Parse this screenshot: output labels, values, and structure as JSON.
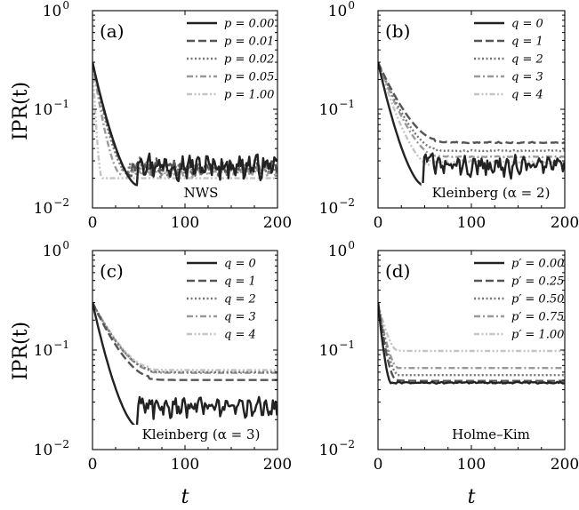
{
  "axes": {
    "ylabel": "IPR(t)",
    "xlabel": "t",
    "x_ticks": [
      "0",
      "100",
      "200"
    ],
    "y_ticks": [
      {
        "base": "10",
        "exp": "0"
      },
      {
        "base": "10",
        "exp": "−1"
      },
      {
        "base": "10",
        "exp": "−2"
      }
    ]
  },
  "chart_data": [
    {
      "id": "a",
      "type": "line",
      "label": "(a)",
      "annotation": "NWS",
      "xlim": [
        0,
        200
      ],
      "ylim": [
        0.01,
        1
      ],
      "yscale": "log",
      "legend_position": "top-right",
      "series": [
        {
          "name": "p = 0.00",
          "color": "#222222",
          "dash": "solid",
          "profile": {
            "start": 0.3,
            "decay_to": 0.017,
            "decay_end": 48,
            "jump": 0.034,
            "tail": 0.027,
            "noise": 0.2
          }
        },
        {
          "name": "p = 0.01",
          "color": "#555555",
          "dash": "long-dash",
          "profile": {
            "start": 0.3,
            "decay_to": 0.021,
            "decay_end": 42,
            "jump": 0.03,
            "tail": 0.026,
            "noise": 0.14
          }
        },
        {
          "name": "p = 0.02",
          "color": "#777777",
          "dash": "dotted",
          "profile": {
            "start": 0.3,
            "decay_to": 0.022,
            "decay_end": 38,
            "jump": 0.028,
            "tail": 0.025,
            "noise": 0.12
          }
        },
        {
          "name": "p = 0.05",
          "color": "#999999",
          "dash": "dash-dot",
          "profile": {
            "start": 0.3,
            "decay_to": 0.022,
            "decay_end": 30,
            "jump": 0.024,
            "tail": 0.023,
            "noise": 0.08
          }
        },
        {
          "name": "p = 1.00",
          "color": "#c4c4c4",
          "dash": "dash-dot-dot",
          "profile": {
            "start": 0.3,
            "decay_to": 0.02,
            "decay_end": 10,
            "jump": 0.02,
            "tail": 0.02,
            "noise": 0.0
          }
        }
      ]
    },
    {
      "id": "b",
      "type": "line",
      "label": "(b)",
      "annotation": "Kleinberg (α = 2)",
      "xlim": [
        0,
        200
      ],
      "ylim": [
        0.01,
        1
      ],
      "yscale": "log",
      "legend_position": "top-right",
      "series": [
        {
          "name": "q = 0",
          "color": "#222222",
          "dash": "solid",
          "profile": {
            "start": 0.3,
            "decay_to": 0.017,
            "decay_end": 48,
            "jump": 0.034,
            "tail": 0.027,
            "noise": 0.18
          }
        },
        {
          "name": "q = 1",
          "color": "#555555",
          "dash": "long-dash",
          "profile": {
            "start": 0.3,
            "decay_to": 0.05,
            "decay_end": 60,
            "jump": 0.048,
            "tail": 0.046,
            "noise": 0.01
          }
        },
        {
          "name": "q = 2",
          "color": "#777777",
          "dash": "dotted",
          "profile": {
            "start": 0.3,
            "decay_to": 0.04,
            "decay_end": 60,
            "jump": 0.039,
            "tail": 0.038,
            "noise": 0.01
          }
        },
        {
          "name": "q = 3",
          "color": "#999999",
          "dash": "dash-dot",
          "profile": {
            "start": 0.3,
            "decay_to": 0.034,
            "decay_end": 60,
            "jump": 0.034,
            "tail": 0.033,
            "noise": 0.01
          }
        },
        {
          "name": "q = 4",
          "color": "#c4c4c4",
          "dash": "dash-dot-dot",
          "profile": {
            "start": 0.3,
            "decay_to": 0.027,
            "decay_end": 55,
            "jump": 0.03,
            "tail": 0.029,
            "noise": 0.03
          }
        }
      ]
    },
    {
      "id": "c",
      "type": "line",
      "label": "(c)",
      "annotation": "Kleinberg (α = 3)",
      "xlim": [
        0,
        200
      ],
      "ylim": [
        0.01,
        1
      ],
      "yscale": "log",
      "legend_position": "top-right",
      "series": [
        {
          "name": "q = 0",
          "color": "#222222",
          "dash": "solid",
          "profile": {
            "start": 0.3,
            "decay_to": 0.017,
            "decay_end": 48,
            "jump": 0.034,
            "tail": 0.027,
            "noise": 0.18
          }
        },
        {
          "name": "q = 1",
          "color": "#555555",
          "dash": "long-dash",
          "profile": {
            "start": 0.3,
            "decay_to": 0.055,
            "decay_end": 60,
            "jump": 0.052,
            "tail": 0.05,
            "noise": 0.0
          }
        },
        {
          "name": "q = 2",
          "color": "#777777",
          "dash": "dotted",
          "profile": {
            "start": 0.3,
            "decay_to": 0.065,
            "decay_end": 60,
            "jump": 0.062,
            "tail": 0.06,
            "noise": 0.0
          }
        },
        {
          "name": "q = 3",
          "color": "#999999",
          "dash": "dash-dot",
          "profile": {
            "start": 0.3,
            "decay_to": 0.064,
            "decay_end": 60,
            "jump": 0.061,
            "tail": 0.059,
            "noise": 0.0
          }
        },
        {
          "name": "q = 4",
          "color": "#c4c4c4",
          "dash": "dash-dot-dot",
          "profile": {
            "start": 0.3,
            "decay_to": 0.068,
            "decay_end": 60,
            "jump": 0.065,
            "tail": 0.063,
            "noise": 0.0
          }
        }
      ]
    },
    {
      "id": "d",
      "type": "line",
      "label": "(d)",
      "annotation": "Holme–Kim",
      "xlim": [
        0,
        200
      ],
      "ylim": [
        0.01,
        1
      ],
      "yscale": "log",
      "legend_position": "top-right",
      "series": [
        {
          "name": "p′ = 0.00",
          "color": "#222222",
          "dash": "solid",
          "profile": {
            "start": 0.3,
            "decay_to": 0.046,
            "decay_end": 14,
            "jump": 0.047,
            "tail": 0.047,
            "noise": 0.015
          }
        },
        {
          "name": "p′ = 0.25",
          "color": "#555555",
          "dash": "long-dash",
          "profile": {
            "start": 0.3,
            "decay_to": 0.052,
            "decay_end": 18,
            "jump": 0.05,
            "tail": 0.049,
            "noise": 0.0
          }
        },
        {
          "name": "p′ = 0.50",
          "color": "#777777",
          "dash": "dotted",
          "profile": {
            "start": 0.3,
            "decay_to": 0.058,
            "decay_end": 20,
            "jump": 0.056,
            "tail": 0.056,
            "noise": 0.0
          }
        },
        {
          "name": "p′ = 0.75",
          "color": "#999999",
          "dash": "dash-dot",
          "profile": {
            "start": 0.3,
            "decay_to": 0.068,
            "decay_end": 20,
            "jump": 0.066,
            "tail": 0.066,
            "noise": 0.0
          }
        },
        {
          "name": "p′ = 1.00",
          "color": "#c4c4c4",
          "dash": "dash-dot-dot",
          "profile": {
            "start": 0.3,
            "decay_to": 0.1,
            "decay_end": 20,
            "jump": 0.099,
            "tail": 0.098,
            "noise": 0.0
          }
        }
      ]
    }
  ]
}
